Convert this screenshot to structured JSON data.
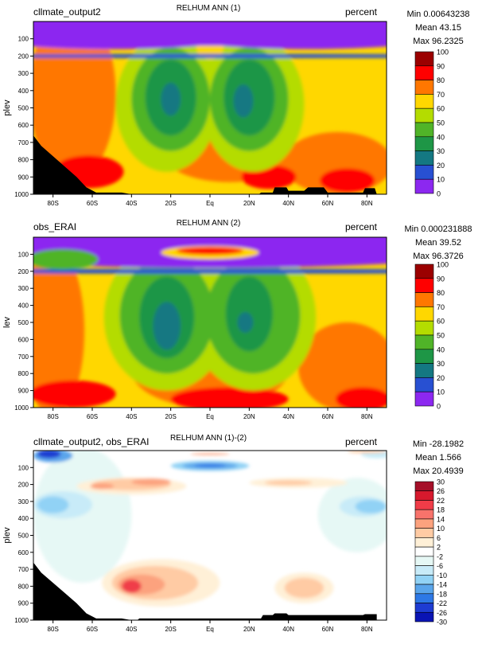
{
  "chart_data": [
    {
      "type": "heatmap",
      "title": "RELHUM ANN (1)",
      "left_title": "cllmate_output2",
      "units": "percent",
      "ylabel": "plev",
      "stats": {
        "min": "Min 0.00643238",
        "mean": "Mean 43.15",
        "max": "Max 96.2325"
      },
      "x_ticks": [
        "80S",
        "60S",
        "40S",
        "20S",
        "Eq",
        "20N",
        "40N",
        "60N",
        "80N"
      ],
      "y_ticks": [
        "100",
        "200",
        "300",
        "400",
        "500",
        "600",
        "700",
        "800",
        "900",
        "1000"
      ],
      "colorbar": {
        "levels": [
          "100",
          "90",
          "80",
          "70",
          "60",
          "50",
          "40",
          "30",
          "20",
          "10",
          "0"
        ],
        "colors": [
          "#9b0000",
          "#ff0000",
          "#ff7700",
          "#ffd700",
          "#b4dc00",
          "#50b428",
          "#1e9646",
          "#147882",
          "#2850d2",
          "#8c28f0"
        ]
      },
      "field": {
        "x_range": [
          -90,
          90
        ],
        "y_range": [
          0,
          1000
        ],
        "background": "#ffd700",
        "regions": [
          {
            "color": "#ff7700",
            "lat": -70,
            "p": 420,
            "rx": 22,
            "ry": 500
          },
          {
            "color": "#ff7700",
            "lat": 10,
            "p": 750,
            "rx": 35,
            "ry": 180
          },
          {
            "color": "#ff7700",
            "lat": 65,
            "p": 820,
            "rx": 28,
            "ry": 180
          },
          {
            "color": "#ff0000",
            "lat": -62,
            "p": 870,
            "rx": 18,
            "ry": 95
          },
          {
            "color": "#ff0000",
            "lat": 30,
            "p": 900,
            "rx": 14,
            "ry": 70
          },
          {
            "color": "#ff0000",
            "lat": 70,
            "p": 920,
            "rx": 14,
            "ry": 70
          },
          {
            "color": "#b4dc00",
            "lat": -22,
            "p": 480,
            "rx": 26,
            "ry": 390
          },
          {
            "color": "#b4dc00",
            "lat": 22,
            "p": 480,
            "rx": 26,
            "ry": 390
          },
          {
            "color": "#b4dc00",
            "lat": 0,
            "p": 240,
            "rx": 16,
            "ry": 130
          },
          {
            "color": "#50b428",
            "lat": -20,
            "p": 450,
            "rx": 20,
            "ry": 300
          },
          {
            "color": "#50b428",
            "lat": 20,
            "p": 450,
            "rx": 20,
            "ry": 300
          },
          {
            "color": "#1e9646",
            "lat": -20,
            "p": 440,
            "rx": 13,
            "ry": 220
          },
          {
            "color": "#1e9646",
            "lat": 20,
            "p": 440,
            "rx": 13,
            "ry": 220
          },
          {
            "color": "#147882",
            "lat": -20,
            "p": 450,
            "rx": 5,
            "ry": 95
          },
          {
            "color": "#147882",
            "lat": 17,
            "p": 460,
            "rx": 5,
            "ry": 95
          },
          {
            "color": "#ffd700",
            "lat": 0,
            "p": 150,
            "rx": 7,
            "ry": 70
          },
          {
            "color": "#8c28f0",
            "lat": 0,
            "p": 0,
            "rx": 180,
            "ry": 140
          },
          {
            "color": "#8c28f0",
            "lat": -50,
            "p": 100,
            "rx": 60,
            "ry": 60
          },
          {
            "color": "#8c28f0",
            "lat": 50,
            "p": 100,
            "rx": 60,
            "ry": 60
          },
          {
            "color": "#2850d2",
            "lat": 0,
            "p": 200,
            "rx": 180,
            "ry": 12
          }
        ],
        "topography": [
          [
            -90,
            660
          ],
          [
            -86,
            720
          ],
          [
            -80,
            780
          ],
          [
            -74,
            840
          ],
          [
            -68,
            900
          ],
          [
            -63,
            960
          ],
          [
            -58,
            990
          ],
          [
            -45,
            990
          ],
          [
            -40,
            1000
          ],
          [
            25,
            1000
          ],
          [
            26,
            990
          ],
          [
            32,
            990
          ],
          [
            33,
            960
          ],
          [
            39,
            960
          ],
          [
            40,
            980
          ],
          [
            48,
            980
          ],
          [
            50,
            960
          ],
          [
            58,
            960
          ],
          [
            60,
            990
          ],
          [
            78,
            990
          ],
          [
            79,
            965
          ],
          [
            84,
            965
          ],
          [
            85,
            1000
          ],
          [
            90,
            1000
          ]
        ]
      }
    },
    {
      "type": "heatmap",
      "title": "RELHUM ANN (2)",
      "left_title": "obs_ERAI",
      "units": "percent",
      "ylabel": "lev",
      "stats": {
        "min": "Min 0.000231888",
        "mean": "Mean 39.52",
        "max": "Max 96.3726"
      },
      "x_ticks": [
        "80S",
        "60S",
        "40S",
        "20S",
        "Eq",
        "20N",
        "40N",
        "60N",
        "80N"
      ],
      "y_ticks": [
        "100",
        "200",
        "300",
        "400",
        "500",
        "600",
        "700",
        "800",
        "900",
        "1000"
      ],
      "colorbar": {
        "levels": [
          "100",
          "90",
          "80",
          "70",
          "60",
          "50",
          "40",
          "30",
          "20",
          "10",
          "0"
        ],
        "colors": [
          "#9b0000",
          "#ff0000",
          "#ff7700",
          "#ffd700",
          "#b4dc00",
          "#50b428",
          "#1e9646",
          "#147882",
          "#2850d2",
          "#8c28f0"
        ]
      },
      "field": {
        "x_range": [
          -90,
          90
        ],
        "y_range": [
          0,
          1000
        ],
        "background": "#ffd700",
        "regions": [
          {
            "color": "#ff7700",
            "lat": -80,
            "p": 550,
            "rx": 16,
            "ry": 500
          },
          {
            "color": "#ff7700",
            "lat": 0,
            "p": 780,
            "rx": 40,
            "ry": 220
          },
          {
            "color": "#ff7700",
            "lat": 70,
            "p": 760,
            "rx": 25,
            "ry": 260
          },
          {
            "color": "#ff0000",
            "lat": -70,
            "p": 920,
            "rx": 22,
            "ry": 80
          },
          {
            "color": "#ff0000",
            "lat": 10,
            "p": 950,
            "rx": 30,
            "ry": 70
          },
          {
            "color": "#ff0000",
            "lat": 78,
            "p": 950,
            "rx": 14,
            "ry": 70
          },
          {
            "color": "#b4dc00",
            "lat": -22,
            "p": 470,
            "rx": 32,
            "ry": 430
          },
          {
            "color": "#b4dc00",
            "lat": 22,
            "p": 470,
            "rx": 32,
            "ry": 430
          },
          {
            "color": "#50b428",
            "lat": -22,
            "p": 460,
            "rx": 24,
            "ry": 340
          },
          {
            "color": "#50b428",
            "lat": 22,
            "p": 460,
            "rx": 24,
            "ry": 340
          },
          {
            "color": "#1e9646",
            "lat": -22,
            "p": 470,
            "rx": 14,
            "ry": 240
          },
          {
            "color": "#1e9646",
            "lat": 20,
            "p": 450,
            "rx": 12,
            "ry": 220
          },
          {
            "color": "#147882",
            "lat": -22,
            "p": 520,
            "rx": 7,
            "ry": 140
          },
          {
            "color": "#147882",
            "lat": 18,
            "p": 500,
            "rx": 4,
            "ry": 60
          },
          {
            "color": "#8c28f0",
            "lat": 0,
            "p": 0,
            "rx": 180,
            "ry": 180
          },
          {
            "color": "#2850d2",
            "lat": 0,
            "p": 200,
            "rx": 180,
            "ry": 14
          },
          {
            "color": "#50b428",
            "lat": -75,
            "p": 130,
            "rx": 18,
            "ry": 60
          },
          {
            "color": "#ffd700",
            "lat": 0,
            "p": 90,
            "rx": 25,
            "ry": 40
          },
          {
            "color": "#ff0000",
            "lat": 0,
            "p": 80,
            "rx": 17,
            "ry": 22
          }
        ],
        "topography": []
      }
    },
    {
      "type": "heatmap",
      "title": "RELHUM ANN (1)-(2)",
      "left_title": "cllmate_output2, obs_ERAI",
      "units": "percent",
      "ylabel": "plev",
      "stats": {
        "min": "Min -28.1982",
        "mean": "Mean 1.566",
        "max": "Max 20.4939"
      },
      "x_ticks": [
        "80S",
        "60S",
        "40S",
        "20S",
        "Eq",
        "20N",
        "40N",
        "60N",
        "80N"
      ],
      "y_ticks": [
        "100",
        "200",
        "300",
        "400",
        "500",
        "600",
        "700",
        "800",
        "900",
        "1000"
      ],
      "colorbar": {
        "levels": [
          "30",
          "26",
          "22",
          "18",
          "14",
          "10",
          "6",
          "2",
          "-2",
          "-6",
          "-10",
          "-14",
          "-18",
          "-22",
          "-26",
          "-30"
        ],
        "colors": [
          "#a50f28",
          "#d7192d",
          "#f03c48",
          "#f8736b",
          "#fca27e",
          "#ffcba4",
          "#fff0d7",
          "#ffffff",
          "#e6f8f5",
          "#c8ebf8",
          "#91d2f5",
          "#5aa5eb",
          "#2d78e6",
          "#1e3cd2",
          "#0a14b4"
        ]
      },
      "field": {
        "x_range": [
          -90,
          90
        ],
        "y_range": [
          0,
          1000
        ],
        "background": "#ffffff",
        "regions": [
          {
            "color": "#e6f8f5",
            "lat": -65,
            "p": 380,
            "rx": 25,
            "ry": 400
          },
          {
            "color": "#e6f8f5",
            "lat": 75,
            "p": 380,
            "rx": 20,
            "ry": 220
          },
          {
            "color": "#c8ebf8",
            "lat": -75,
            "p": 320,
            "rx": 15,
            "ry": 80
          },
          {
            "color": "#91d2f5",
            "lat": -80,
            "p": 320,
            "rx": 8,
            "ry": 50
          },
          {
            "color": "#c8ebf8",
            "lat": 78,
            "p": 330,
            "rx": 12,
            "ry": 60
          },
          {
            "color": "#91d2f5",
            "lat": 82,
            "p": 330,
            "rx": 8,
            "ry": 40
          },
          {
            "color": "#fff0d7",
            "lat": -25,
            "p": 780,
            "rx": 30,
            "ry": 140
          },
          {
            "color": "#ffcba4",
            "lat": -28,
            "p": 780,
            "rx": 22,
            "ry": 100
          },
          {
            "color": "#fca27e",
            "lat": -35,
            "p": 790,
            "rx": 12,
            "ry": 60
          },
          {
            "color": "#f03c48",
            "lat": -40,
            "p": 800,
            "rx": 5,
            "ry": 40
          },
          {
            "color": "#fff0d7",
            "lat": 48,
            "p": 810,
            "rx": 15,
            "ry": 90
          },
          {
            "color": "#ffcba4",
            "lat": 48,
            "p": 810,
            "rx": 10,
            "ry": 60
          },
          {
            "color": "#fff0d7",
            "lat": -40,
            "p": 210,
            "rx": 28,
            "ry": 50
          },
          {
            "color": "#ffcba4",
            "lat": -40,
            "p": 200,
            "rx": 20,
            "ry": 35
          },
          {
            "color": "#fca27e",
            "lat": -30,
            "p": 185,
            "rx": 10,
            "ry": 20
          },
          {
            "color": "#fca27e",
            "lat": -55,
            "p": 210,
            "rx": 6,
            "ry": 18
          },
          {
            "color": "#fff0d7",
            "lat": 45,
            "p": 190,
            "rx": 25,
            "ry": 30
          },
          {
            "color": "#ffcba4",
            "lat": 40,
            "p": 190,
            "rx": 12,
            "ry": 15
          },
          {
            "color": "#91d2f5",
            "lat": 0,
            "p": 90,
            "rx": 20,
            "ry": 30
          },
          {
            "color": "#5aa5eb",
            "lat": 0,
            "p": 90,
            "rx": 14,
            "ry": 18
          },
          {
            "color": "#2d78e6",
            "lat": 0,
            "p": 88,
            "rx": 8,
            "ry": 10
          },
          {
            "color": "#fca27e",
            "lat": 0,
            "p": 20,
            "rx": 10,
            "ry": 6
          },
          {
            "color": "#5aa5eb",
            "lat": -80,
            "p": 30,
            "rx": 10,
            "ry": 40
          },
          {
            "color": "#1e3cd2",
            "lat": -82,
            "p": 20,
            "rx": 6,
            "ry": 25
          },
          {
            "color": "#c8ebf8",
            "lat": 85,
            "p": 20,
            "rx": 8,
            "ry": 25
          },
          {
            "color": "#ffcba4",
            "lat": 80,
            "p": 5,
            "rx": 10,
            "ry": 10
          }
        ],
        "topography": [
          [
            -90,
            660
          ],
          [
            -86,
            720
          ],
          [
            -80,
            780
          ],
          [
            -74,
            840
          ],
          [
            -68,
            900
          ],
          [
            -63,
            960
          ],
          [
            -58,
            990
          ],
          [
            -45,
            990
          ],
          [
            -40,
            1000
          ],
          [
            -37,
            1000
          ],
          [
            -36,
            990
          ],
          [
            26,
            990
          ],
          [
            27,
            970
          ],
          [
            32,
            970
          ],
          [
            33,
            960
          ],
          [
            39,
            960
          ],
          [
            40,
            970
          ],
          [
            78,
            970
          ],
          [
            79,
            965
          ],
          [
            85,
            965
          ],
          [
            85,
            1000
          ],
          [
            90,
            1000
          ]
        ]
      }
    }
  ]
}
